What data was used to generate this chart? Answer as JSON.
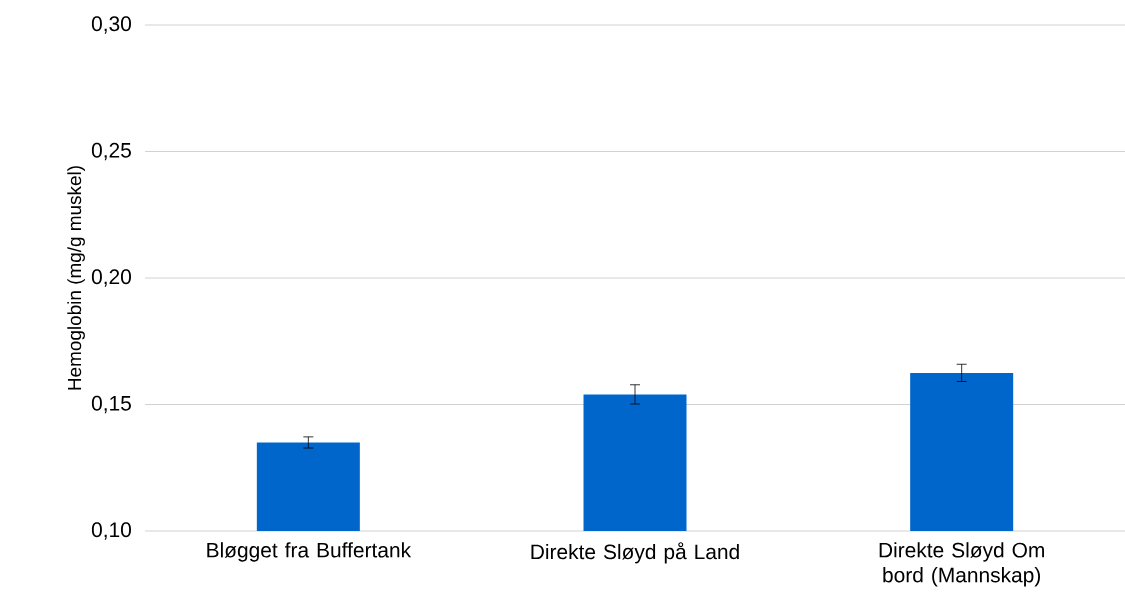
{
  "chart_data": {
    "type": "bar",
    "ylabel": "Hemoglobin (mg/g muskel)",
    "categories": [
      "Bløgget fra Buffertank",
      "Direkte Sløyd på Land",
      "Direkte Sløyd Om bord (Mannskap)"
    ],
    "values": [
      0.135,
      0.154,
      0.1625
    ],
    "errors": [
      0.0022,
      0.0038,
      0.0034
    ],
    "color": "#0066cc",
    "ylim": [
      0.1,
      0.3
    ],
    "yticks": [
      {
        "value": 0.1,
        "label": "0,10"
      },
      {
        "value": 0.15,
        "label": "0,15"
      },
      {
        "value": 0.2,
        "label": "0,20"
      },
      {
        "value": 0.25,
        "label": "0,25"
      },
      {
        "value": 0.3,
        "label": "0,30"
      }
    ],
    "grid": "y"
  }
}
